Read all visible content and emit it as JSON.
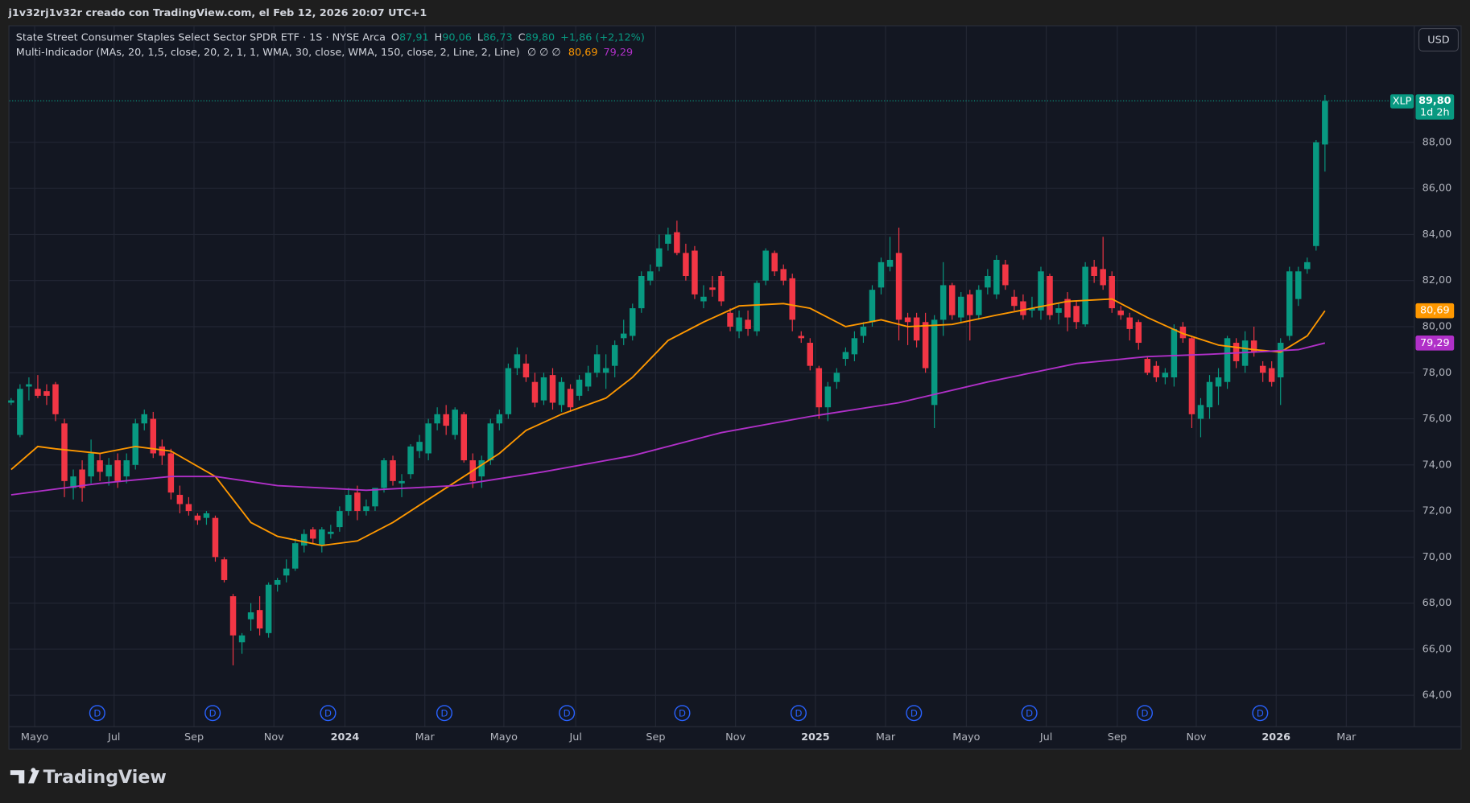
{
  "header": {
    "caption": "j1v32rj1v32r creado con TradingView.com, el Feb 12, 2026 20:07 UTC+1",
    "currency_button": "USD",
    "brand": "TradingView"
  },
  "chart_data": {
    "type": "candlestick",
    "title": "State Street Consumer Staples Select Sector SPDR ETF · 1S · NYSE Arca",
    "ohlc_legend": [
      {
        "key": "O",
        "value": "87,91"
      },
      {
        "key": "H",
        "value": "90,06"
      },
      {
        "key": "L",
        "value": "86,73"
      },
      {
        "key": "C",
        "value": "89,80"
      }
    ],
    "change": "+1,86 (+2,12%)",
    "indicator": "Multi-Indicador (MAs, 20, 1,5, close, 20, 2, 1, 1, WMA, 30, close, WMA, 150, close, 2, Line, 2, Line)",
    "indicator_empty": "∅  ∅  ∅",
    "symbol": "XLP",
    "last_price_label": "89,80",
    "countdown": "1d 2h",
    "up_color": "#089981",
    "down_color": "#f23645",
    "candles": {
      "open": [
        76.7,
        75.3,
        77.4,
        77.3,
        77.2,
        77.5,
        75.8,
        73.0,
        73.8,
        73.5,
        74.2,
        73.5,
        74.2,
        73.5,
        74.0,
        75.8,
        76.0,
        74.8,
        74.5,
        72.7,
        72.3,
        71.8,
        71.7,
        71.7,
        69.9,
        68.3,
        66.3,
        67.3,
        67.7,
        66.7,
        68.8,
        69.2,
        69.5,
        70.5,
        71.2,
        70.5,
        71.0,
        71.3,
        72.0,
        72.8,
        72.0,
        72.2,
        73.0,
        74.2,
        73.2,
        73.6,
        74.6,
        74.5,
        75.8,
        76.2,
        75.3,
        76.2,
        74.2,
        73.5,
        74.2,
        75.8,
        76.2,
        78.2,
        78.4,
        77.6,
        76.8,
        77.9,
        76.6,
        77.3,
        77.0,
        77.4,
        78.0,
        78.0,
        78.3,
        79.5,
        79.6,
        80.8,
        82.0,
        82.6,
        83.6,
        84.1,
        83.2,
        83.3,
        81.1,
        81.7,
        82.2,
        80.6,
        79.8,
        80.3,
        79.8,
        82.0,
        83.2,
        82.5,
        82.1,
        79.6,
        79.3,
        78.2,
        76.5,
        77.6,
        78.6,
        78.8,
        79.6,
        80.2,
        81.7,
        82.6,
        83.2,
        80.4,
        80.4,
        80.2,
        76.6,
        80.3,
        81.8,
        80.4,
        81.4,
        80.5,
        81.7,
        81.4,
        82.7,
        81.3,
        81.1,
        80.7,
        80.7,
        82.2,
        80.6,
        81.2,
        80.9,
        80.1,
        82.6,
        82.5,
        82.2,
        80.7,
        80.4,
        80.2,
        78.6,
        78.3,
        77.8,
        77.8,
        80.0,
        79.5,
        76.0,
        76.5,
        77.4,
        77.6,
        79.3,
        78.3,
        79.4,
        78.3,
        78.2,
        77.8,
        79.6,
        81.2,
        82.5,
        83.5,
        87.91
      ],
      "high": [
        76.9,
        77.5,
        77.8,
        77.9,
        77.5,
        77.6,
        76.0,
        73.8,
        74.2,
        75.1,
        74.5,
        74.3,
        74.5,
        74.5,
        76.0,
        76.4,
        76.3,
        75.1,
        74.7,
        73.1,
        72.6,
        71.9,
        72.0,
        71.8,
        70.0,
        68.4,
        66.7,
        68.0,
        68.3,
        68.9,
        69.1,
        69.9,
        70.8,
        71.2,
        71.3,
        71.3,
        71.4,
        72.2,
        73.0,
        73.1,
        72.5,
        73.0,
        74.3,
        74.4,
        73.6,
        74.9,
        75.3,
        76.0,
        76.5,
        76.6,
        76.5,
        76.3,
        74.5,
        74.4,
        76.0,
        76.4,
        78.4,
        79.1,
        78.8,
        78.0,
        78.0,
        78.2,
        77.8,
        77.5,
        77.9,
        78.3,
        79.2,
        78.8,
        79.4,
        80.3,
        81.0,
        82.4,
        82.7,
        84.0,
        84.3,
        84.6,
        83.6,
        83.5,
        81.8,
        82.2,
        82.4,
        80.8,
        80.7,
        80.7,
        82.0,
        83.4,
        83.3,
        82.7,
        82.3,
        79.8,
        79.5,
        78.3,
        77.6,
        78.2,
        79.1,
        79.8,
        80.2,
        81.8,
        83.0,
        83.9,
        84.3,
        80.6,
        80.6,
        80.6,
        80.5,
        82.8,
        81.9,
        81.5,
        81.6,
        81.8,
        82.5,
        83.1,
        82.9,
        81.6,
        81.4,
        81.3,
        82.6,
        82.3,
        81.0,
        81.5,
        81.1,
        82.8,
        82.9,
        83.9,
        82.4,
        80.9,
        80.6,
        80.3,
        78.7,
        78.5,
        78.2,
        80.1,
        80.2,
        79.6,
        76.9,
        77.9,
        78.2,
        79.6,
        79.5,
        79.8,
        80.0,
        78.5,
        78.5,
        79.5,
        82.6,
        82.6,
        83.0,
        88.1,
        90.06
      ],
      "low": [
        76.6,
        75.2,
        76.8,
        76.9,
        76.6,
        75.9,
        72.6,
        72.5,
        72.4,
        73.2,
        73.3,
        73.1,
        73.0,
        73.2,
        73.8,
        75.5,
        74.3,
        74.0,
        72.5,
        71.9,
        71.8,
        71.4,
        71.4,
        69.8,
        68.9,
        65.3,
        65.8,
        66.8,
        66.6,
        66.5,
        68.5,
        68.9,
        69.4,
        70.2,
        70.6,
        70.2,
        70.8,
        71.1,
        71.8,
        71.6,
        71.8,
        72.0,
        72.8,
        73.1,
        72.6,
        73.4,
        74.3,
        74.2,
        75.5,
        75.3,
        75.1,
        74.1,
        73.0,
        73.0,
        74.0,
        75.5,
        76.0,
        77.9,
        77.6,
        76.5,
        76.6,
        76.4,
        76.3,
        76.3,
        76.8,
        77.2,
        77.8,
        77.3,
        77.8,
        79.2,
        79.4,
        80.6,
        81.8,
        82.4,
        83.3,
        83.1,
        82.0,
        81.2,
        80.8,
        81.3,
        80.9,
        79.8,
        79.5,
        79.6,
        79.6,
        81.8,
        82.2,
        81.8,
        79.8,
        79.3,
        78.1,
        76.0,
        75.9,
        77.3,
        78.3,
        78.5,
        79.3,
        80.0,
        81.4,
        82.4,
        79.4,
        79.2,
        79.1,
        78.0,
        75.6,
        79.6,
        80.3,
        80.2,
        79.4,
        80.3,
        81.4,
        81.2,
        81.6,
        80.7,
        80.3,
        80.4,
        80.3,
        80.3,
        80.1,
        79.8,
        79.9,
        80.0,
        81.9,
        81.6,
        80.6,
        80.3,
        79.4,
        79.0,
        77.9,
        77.6,
        77.5,
        77.4,
        79.3,
        75.6,
        75.2,
        76.0,
        76.6,
        77.3,
        78.2,
        78.0,
        78.7,
        77.6,
        77.4,
        76.6,
        79.4,
        80.9,
        82.3,
        83.3,
        86.73
      ],
      "close": [
        76.8,
        77.3,
        77.5,
        77.0,
        77.0,
        76.2,
        73.3,
        73.5,
        73.0,
        74.5,
        73.7,
        74.0,
        73.3,
        74.2,
        75.8,
        76.2,
        74.5,
        74.4,
        72.8,
        72.3,
        72.0,
        71.6,
        71.9,
        70.0,
        69.0,
        66.6,
        66.6,
        67.6,
        66.9,
        68.8,
        69.0,
        69.5,
        70.6,
        71.0,
        70.8,
        71.2,
        71.1,
        72.0,
        72.7,
        72.0,
        72.2,
        73.0,
        74.2,
        73.3,
        73.3,
        74.8,
        75.0,
        75.8,
        76.2,
        75.7,
        76.4,
        74.2,
        73.3,
        74.2,
        75.8,
        76.2,
        78.2,
        78.8,
        77.8,
        76.7,
        77.8,
        76.7,
        77.6,
        76.5,
        77.7,
        78.0,
        78.8,
        78.2,
        79.2,
        79.7,
        80.8,
        82.2,
        82.4,
        83.4,
        84.0,
        83.2,
        82.2,
        81.4,
        81.3,
        81.6,
        81.1,
        80.0,
        80.4,
        79.9,
        81.9,
        83.3,
        82.4,
        82.0,
        80.3,
        79.5,
        78.3,
        76.5,
        77.4,
        78.0,
        78.9,
        79.5,
        80.0,
        81.6,
        82.8,
        82.9,
        80.3,
        80.2,
        79.4,
        78.2,
        80.3,
        81.8,
        80.5,
        81.3,
        80.5,
        81.6,
        82.2,
        82.9,
        81.8,
        80.9,
        80.5,
        80.8,
        82.4,
        80.5,
        80.8,
        80.4,
        80.2,
        82.6,
        82.2,
        81.8,
        80.8,
        80.5,
        79.9,
        79.3,
        78.0,
        77.8,
        78.0,
        79.9,
        79.5,
        76.2,
        76.6,
        77.6,
        77.8,
        79.5,
        78.5,
        79.4,
        78.9,
        78.0,
        77.6,
        79.3,
        82.4,
        82.4,
        82.8,
        88.0,
        89.8
      ]
    },
    "lines": [
      {
        "color": "#ff9800",
        "last_label": "80,69",
        "x": [
          0,
          3,
          5,
          10,
          14,
          18,
          23,
          27,
          30,
          35,
          39,
          43,
          47,
          51,
          55,
          58,
          62,
          67,
          70,
          74,
          78,
          82,
          87,
          90,
          94,
          98,
          101,
          106,
          111,
          115,
          119,
          124,
          128,
          132,
          136,
          140,
          143,
          146,
          148
        ],
        "values": [
          73.8,
          74.8,
          74.7,
          74.5,
          74.8,
          74.6,
          73.5,
          71.5,
          70.9,
          70.5,
          70.7,
          71.5,
          72.5,
          73.5,
          74.5,
          75.5,
          76.2,
          76.9,
          77.8,
          79.4,
          80.2,
          80.9,
          81.0,
          80.8,
          80.0,
          80.3,
          80.0,
          80.1,
          80.5,
          80.8,
          81.1,
          81.2,
          80.4,
          79.7,
          79.2,
          79.0,
          78.9,
          79.6,
          80.69
        ]
      },
      {
        "color": "#b030c8",
        "last_label": "79,29",
        "x": [
          0,
          10,
          18,
          23,
          30,
          40,
          50,
          60,
          70,
          80,
          90,
          100,
          110,
          120,
          128,
          135,
          140,
          145,
          148
        ],
        "values": [
          72.7,
          73.2,
          73.5,
          73.5,
          73.1,
          72.9,
          73.1,
          73.7,
          74.4,
          75.4,
          76.1,
          76.7,
          77.6,
          78.4,
          78.7,
          78.8,
          78.9,
          79.0,
          79.29
        ]
      }
    ],
    "dividends": {
      "label": "D",
      "x": [
        9.7,
        22.7,
        35.7,
        48.8,
        62.6,
        75.6,
        88.7,
        101.7,
        114.7,
        127.7,
        140.7
      ]
    },
    "xlim": [
      -0.2,
      158
    ],
    "xticks": [
      {
        "value": 2.65,
        "label": "Mayo"
      },
      {
        "value": 11.6,
        "label": "Jul"
      },
      {
        "value": 20.6,
        "label": "Sep"
      },
      {
        "value": 29.6,
        "label": "Nov"
      },
      {
        "value": 37.6,
        "label": "2024"
      },
      {
        "value": 46.6,
        "label": "Mar"
      },
      {
        "value": 55.5,
        "label": "Mayo"
      },
      {
        "value": 63.6,
        "label": "Jul"
      },
      {
        "value": 72.6,
        "label": "Sep"
      },
      {
        "value": 81.6,
        "label": "Nov"
      },
      {
        "value": 90.6,
        "label": "2025"
      },
      {
        "value": 98.5,
        "label": "Mar"
      },
      {
        "value": 107.6,
        "label": "Mayo"
      },
      {
        "value": 116.6,
        "label": "Jul"
      },
      {
        "value": 124.6,
        "label": "Sep"
      },
      {
        "value": 133.5,
        "label": "Nov"
      },
      {
        "value": 142.5,
        "label": "2026"
      },
      {
        "value": 150.4,
        "label": "Mar"
      }
    ],
    "ylim": [
      62.66,
      93.04
    ],
    "yticks": [
      {
        "value": 64,
        "label": "64,00"
      },
      {
        "value": 66,
        "label": "66,00"
      },
      {
        "value": 68,
        "label": "68,00"
      },
      {
        "value": 70,
        "label": "70,00"
      },
      {
        "value": 72,
        "label": "72,00"
      },
      {
        "value": 74,
        "label": "74,00"
      },
      {
        "value": 76,
        "label": "76,00"
      },
      {
        "value": 78,
        "label": "78,00"
      },
      {
        "value": 80,
        "label": "80,00"
      },
      {
        "value": 82,
        "label": "82,00"
      },
      {
        "value": 84,
        "label": "84,00"
      },
      {
        "value": 86,
        "label": "86,00"
      },
      {
        "value": 88,
        "label": "88,00"
      }
    ],
    "grid": true
  }
}
